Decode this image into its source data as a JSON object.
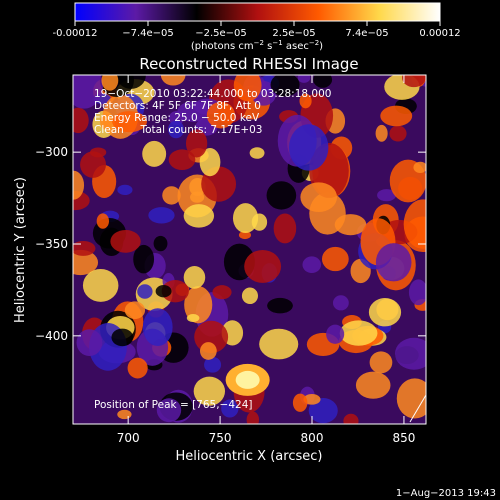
{
  "chart_data": {
    "type": "heatmap",
    "title": "Reconstructed RHESSI Image",
    "colorbar": {
      "ticks": [
        "-0.00012",
        "−7.4e−05",
        "−2.5e−05",
        "2.5e−05",
        "7.4e−05",
        "0.00012"
      ],
      "unit_line1": "(photons cm",
      "unit_sup1": "−2",
      "unit_mid1": " s",
      "unit_sup2": "−1",
      "unit_mid2": " asec",
      "unit_sup3": "−2",
      "unit_end": ")",
      "range": [
        -0.00012,
        0.00012
      ],
      "colors": [
        "#0000ff",
        "#5c1aa6",
        "#000000",
        "#b01010",
        "#ff5a00",
        "#ffd84a",
        "#ffffff"
      ]
    },
    "xlabel": "Heliocentric X (arcsec)",
    "ylabel": "Heliocentric Y (arcsec)",
    "xlim": [
      670,
      862
    ],
    "ylim": [
      -448,
      -258
    ],
    "xticks": [
      "700",
      "750",
      "800",
      "850"
    ],
    "yticks": [
      "−300",
      "−350",
      "−400"
    ],
    "info": [
      "19−Oct−2010 03:22:44.000 to 03:28:18.000",
      "Detectors: 4F 5F 6F 7F 8F, Att 0",
      "Energy Range: 25.0 − 50.0 keV",
      "Clean     Total counts: 7.17E+03"
    ],
    "peak_label": "Position of Peak = [765,−424]",
    "peak": [
      765,
      -424
    ]
  },
  "footer": {
    "date": "1−Aug−2013 19:43"
  }
}
